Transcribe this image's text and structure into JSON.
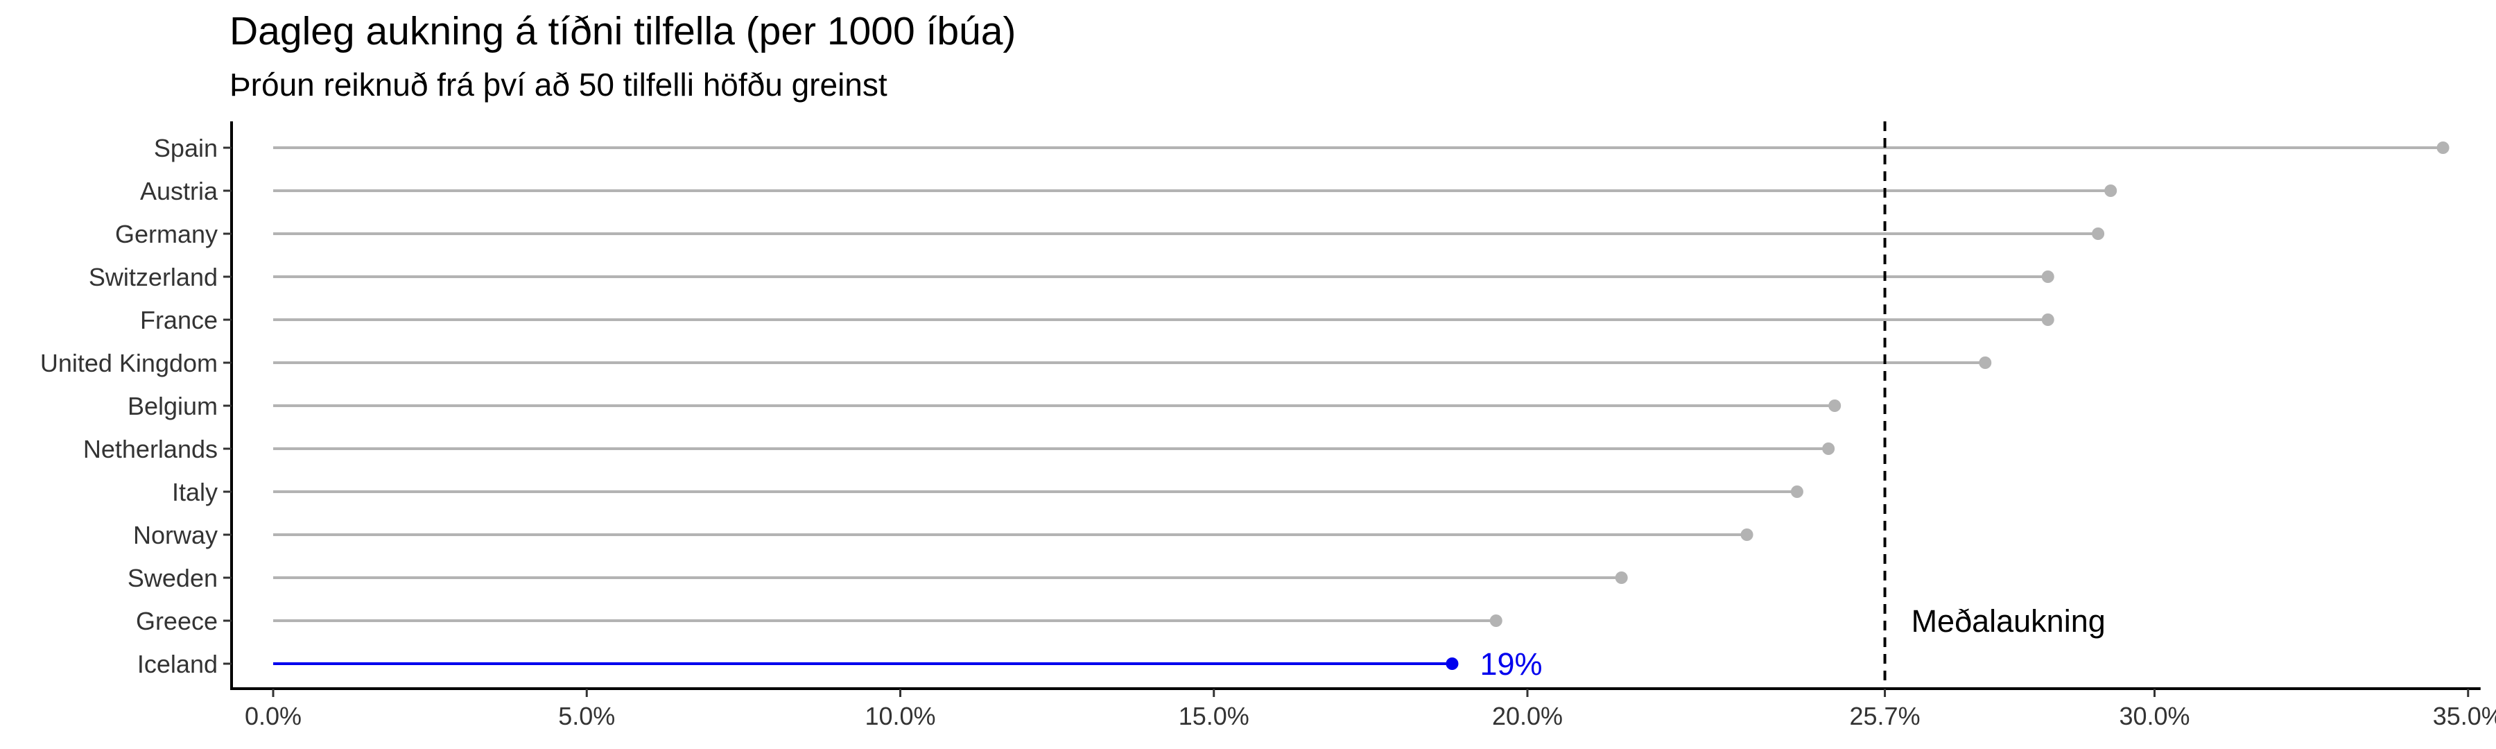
{
  "chart_data": {
    "type": "lollipop",
    "title": "Dagleg aukning á tíðni tilfella (per 1000 íbúa)",
    "subtitle": "Þróun reiknuð frá því að 50 tilfelli höfðu greinst",
    "xlabel": "",
    "ylabel": "",
    "xlim": [
      0,
      35
    ],
    "x_ticks": [
      {
        "value": 0,
        "label": "0.0%"
      },
      {
        "value": 5,
        "label": "5.0%"
      },
      {
        "value": 10,
        "label": "10.0%"
      },
      {
        "value": 15,
        "label": "15.0%"
      },
      {
        "value": 20,
        "label": "20.0%"
      },
      {
        "value": 25.7,
        "label": "25.7%"
      },
      {
        "value": 30,
        "label": "30.0%"
      },
      {
        "value": 35,
        "label": "35.0%"
      }
    ],
    "grid": false,
    "categories": [
      "Spain",
      "Austria",
      "Germany",
      "Switzerland",
      "France",
      "United Kingdom",
      "Belgium",
      "Netherlands",
      "Italy",
      "Norway",
      "Sweden",
      "Greece",
      "Iceland"
    ],
    "values": [
      34.6,
      29.3,
      29.1,
      28.3,
      28.3,
      27.3,
      24.9,
      24.8,
      24.3,
      23.5,
      21.5,
      19.5,
      18.8
    ],
    "highlight": {
      "category": "Iceland",
      "label": "19%",
      "color": "#0000ee"
    },
    "reference_line": {
      "value": 25.7,
      "label": "Meðalaukning",
      "style": "dashed"
    },
    "colors": {
      "default": "#b3b3b3",
      "highlight": "#0000ee",
      "reference": "#000000"
    }
  }
}
